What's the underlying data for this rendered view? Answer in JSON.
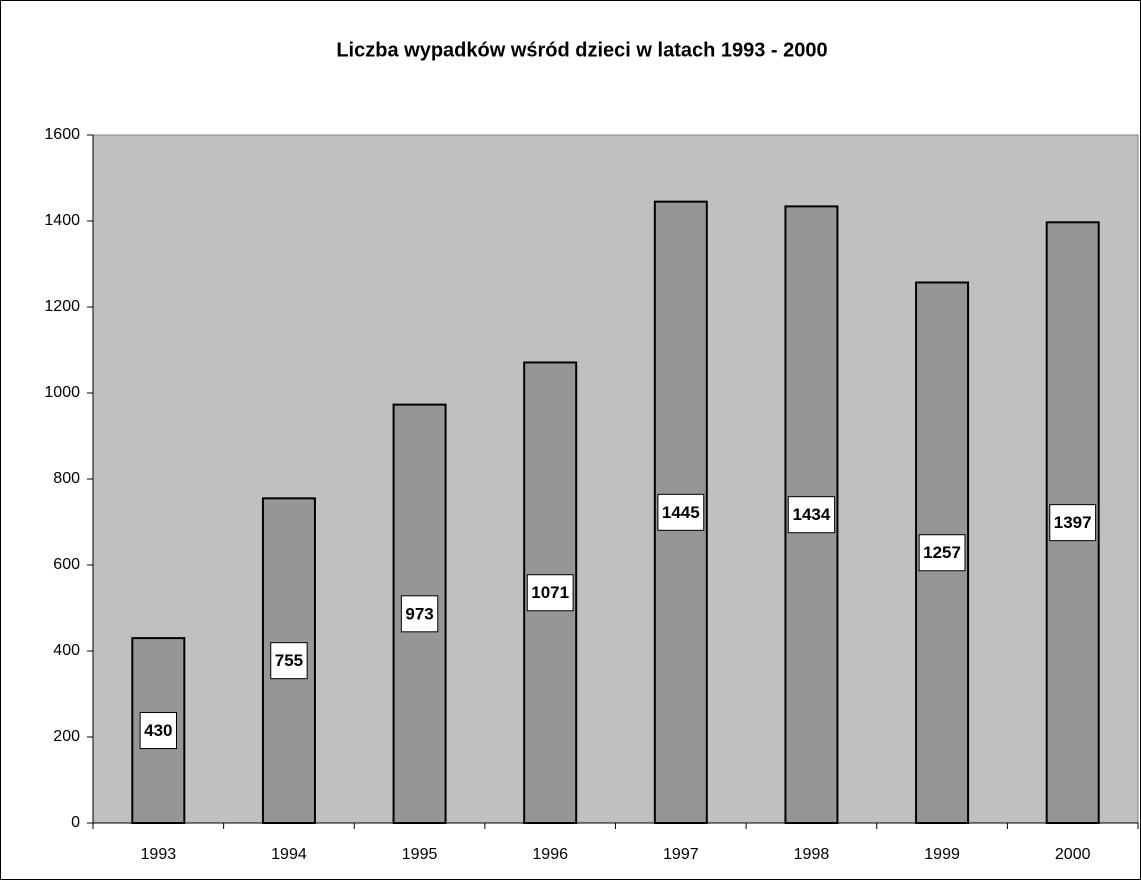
{
  "chart_data": {
    "type": "bar",
    "title": "Liczba wypadków wśród dzieci w latach 1993 - 2000",
    "categories": [
      "1993",
      "1994",
      "1995",
      "1996",
      "1997",
      "1998",
      "1999",
      "2000"
    ],
    "values": [
      430,
      755,
      973,
      1071,
      1445,
      1434,
      1257,
      1397
    ],
    "color": "#969696",
    "plot_background": "#c0c0c0",
    "ylim": [
      0,
      1600
    ],
    "yticks": [
      0,
      200,
      400,
      600,
      800,
      1000,
      1200,
      1400,
      1600
    ],
    "grid": false,
    "data_labels": true
  }
}
